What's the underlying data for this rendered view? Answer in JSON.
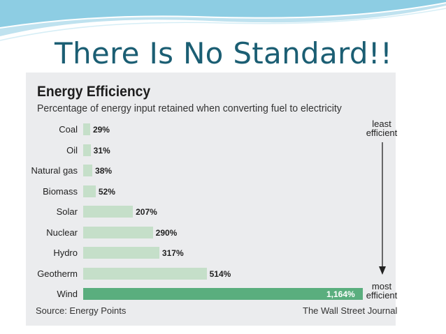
{
  "slide": {
    "title": "There Is No Standard!!"
  },
  "chart_data": {
    "type": "bar",
    "orientation": "horizontal",
    "title": "Energy Efficiency",
    "subtitle": "Percentage of energy input retained when converting fuel to electricity",
    "categories": [
      "Coal",
      "Oil",
      "Natural gas",
      "Biomass",
      "Solar",
      "Nuclear",
      "Hydro",
      "Geotherm",
      "Wind"
    ],
    "values": [
      29,
      31,
      38,
      52,
      207,
      290,
      317,
      514,
      1164
    ],
    "value_labels": [
      "29%",
      "31%",
      "38%",
      "52%",
      "207%",
      "290%",
      "317%",
      "514%",
      "1,164%"
    ],
    "xlim": [
      0,
      1164
    ],
    "highlight_category": "Wind",
    "annotations": {
      "top": "least efficient",
      "bottom": "most efficient"
    },
    "source": "Source: Energy Points",
    "publisher": "The Wall Street Journal",
    "colors": {
      "bar": "#c5dfc9",
      "highlight": "#5aae7e",
      "panel": "#ebecee",
      "title": "#1b5e73"
    }
  }
}
